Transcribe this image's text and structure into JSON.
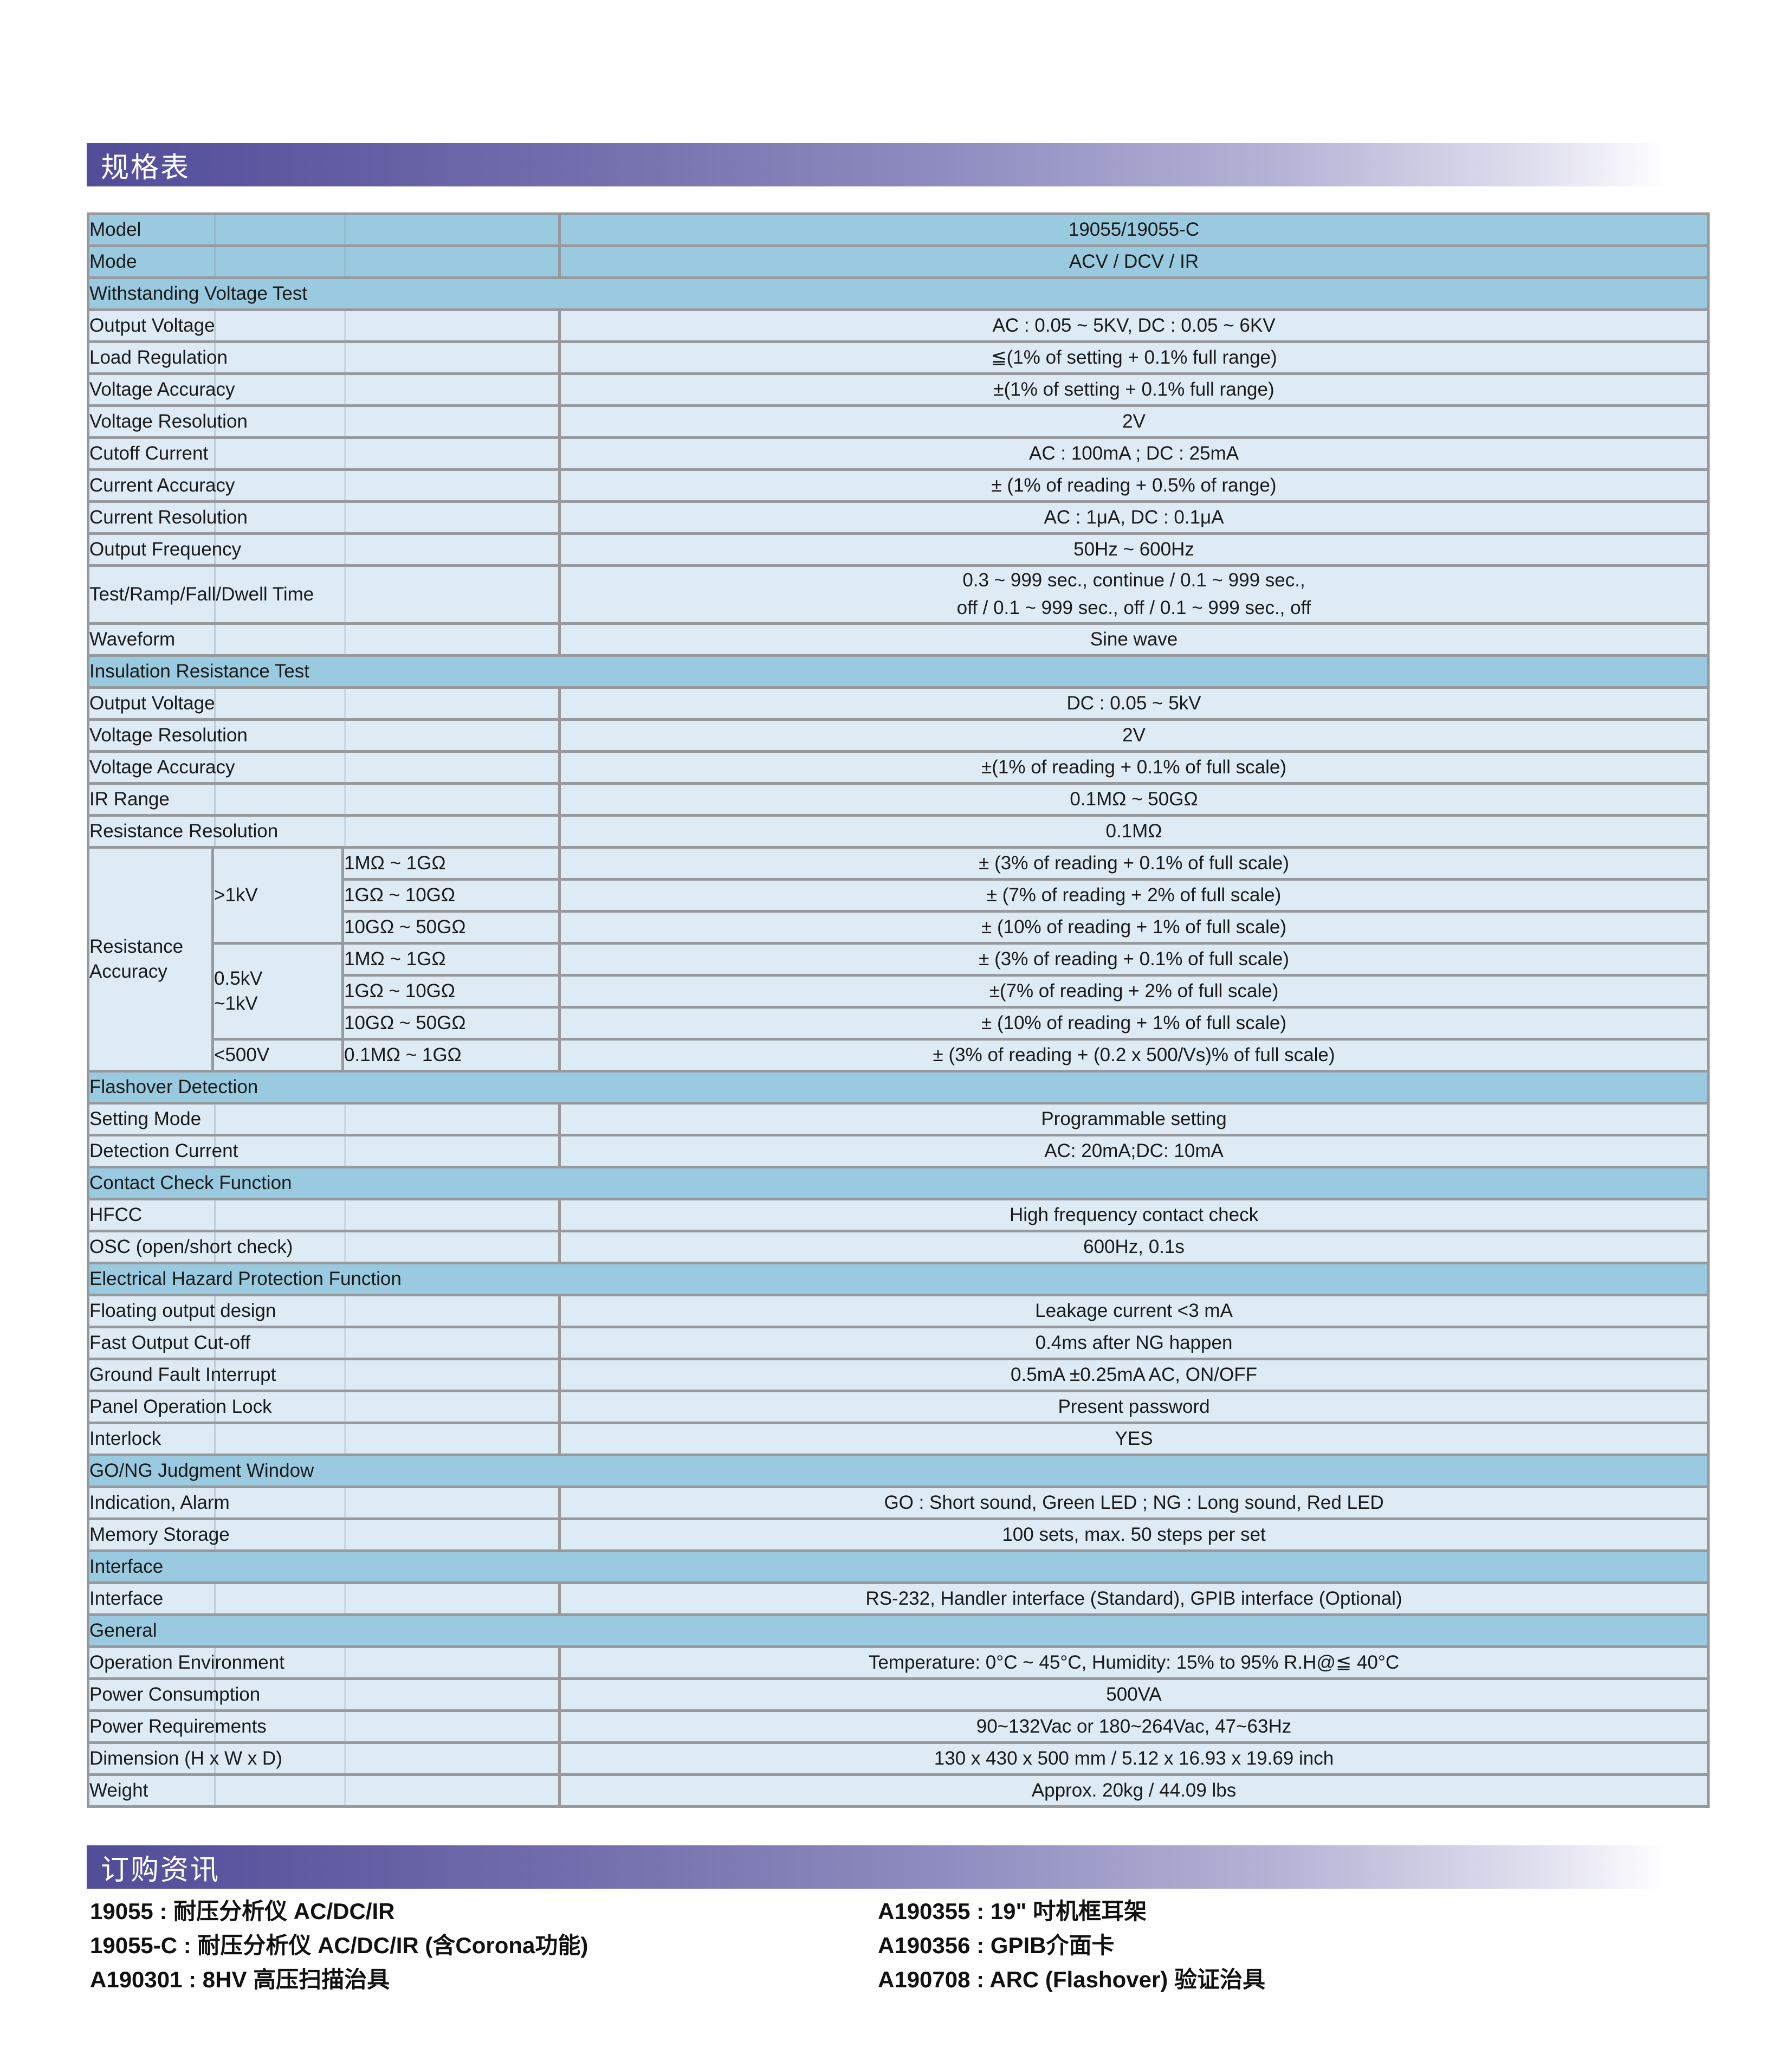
{
  "headers": {
    "spec": "规格表",
    "order": "订购资讯"
  },
  "colors": {
    "header_bar_purple": "#524D99",
    "section_row_blue": "#9ACAE0",
    "data_row_blue": "#DEEBF5",
    "table_border_gray": "#969A9E",
    "text": "#1A1A1A"
  },
  "table": {
    "rows": [
      {
        "t": "hkv",
        "label": "Model",
        "value": "19055/19055-C"
      },
      {
        "t": "hkv",
        "label": "Mode",
        "value": "ACV / DCV / IR"
      },
      {
        "t": "sec",
        "label": "Withstanding Voltage Test"
      },
      {
        "t": "kv",
        "label": "Output Voltage",
        "value": "AC : 0.05 ~ 5KV, DC : 0.05 ~ 6KV"
      },
      {
        "t": "kv",
        "label": "Load Regulation",
        "value": "≦(1% of setting + 0.1% full range)"
      },
      {
        "t": "kv",
        "label": "Voltage Accuracy",
        "value": "±(1% of setting + 0.1% full range)"
      },
      {
        "t": "kv",
        "label": "Voltage Resolution",
        "value": "2V"
      },
      {
        "t": "kv",
        "label": "Cutoff Current",
        "value": "AC : 100mA ; DC : 25mA"
      },
      {
        "t": "kv",
        "label": "Current Accuracy",
        "value": "± (1% of reading + 0.5% of range)"
      },
      {
        "t": "kv",
        "label": "Current Resolution",
        "value": "AC : 1μA, DC : 0.1μA"
      },
      {
        "t": "kv",
        "label": "Output Frequency",
        "value": "50Hz ~ 600Hz"
      },
      {
        "t": "kv",
        "tall": true,
        "label": "Test/Ramp/Fall/Dwell Time",
        "value": "0.3 ~ 999 sec., continue / 0.1 ~ 999 sec.,\noff / 0.1 ~ 999 sec., off / 0.1 ~ 999 sec., off"
      },
      {
        "t": "kv",
        "label": "Waveform",
        "value": "Sine wave"
      },
      {
        "t": "sec",
        "label": "Insulation Resistance Test"
      },
      {
        "t": "kv",
        "label": "Output Voltage",
        "value": "DC : 0.05 ~ 5kV"
      },
      {
        "t": "kv",
        "label": "Voltage Resolution",
        "value": "2V"
      },
      {
        "t": "kv",
        "label": "Voltage Accuracy",
        "value": "±(1% of reading + 0.1% of full scale)"
      },
      {
        "t": "kv",
        "label": "IR Range",
        "value": "0.1MΩ ~ 50GΩ"
      },
      {
        "t": "kv",
        "label": "Resistance Resolution",
        "value": "0.1MΩ"
      },
      {
        "t": "acc"
      },
      {
        "t": "sec",
        "label": "Flashover Detection"
      },
      {
        "t": "kv",
        "label": "Setting Mode",
        "value": "Programmable setting"
      },
      {
        "t": "kv",
        "label": "Detection Current",
        "value": "AC: 20mA;DC: 10mA"
      },
      {
        "t": "sec",
        "label": "Contact Check Function"
      },
      {
        "t": "kv",
        "label": "HFCC",
        "value": "High frequency contact check"
      },
      {
        "t": "kv",
        "label": "OSC (open/short check)",
        "value": "600Hz, 0.1s"
      },
      {
        "t": "sec",
        "label": "Electrical Hazard Protection Function"
      },
      {
        "t": "kv",
        "label": "Floating output design",
        "value": "Leakage current <3 mA"
      },
      {
        "t": "kv",
        "label": "Fast Output Cut-off",
        "value": "0.4ms after NG happen"
      },
      {
        "t": "kv",
        "label": "Ground Fault Interrupt",
        "value": "0.5mA ±0.25mA AC, ON/OFF"
      },
      {
        "t": "kv",
        "label": "Panel Operation Lock",
        "value": "Present password"
      },
      {
        "t": "kv",
        "label": "Interlock",
        "value": "YES"
      },
      {
        "t": "sec",
        "label": "GO/NG Judgment Window"
      },
      {
        "t": "kv",
        "label": "Indication, Alarm",
        "value": "GO : Short sound, Green LED ; NG : Long sound, Red LED"
      },
      {
        "t": "kv",
        "label": "Memory Storage",
        "value": "100 sets, max. 50 steps per set"
      },
      {
        "t": "sec",
        "label": "Interface"
      },
      {
        "t": "kv",
        "label": "Interface",
        "value": "RS-232, Handler interface (Standard), GPIB interface (Optional)"
      },
      {
        "t": "sec",
        "label": "General"
      },
      {
        "t": "kv",
        "label": "Operation Environment",
        "value": "Temperature: 0°C ~ 45°C, Humidity: 15% to 95% R.H@≦ 40°C"
      },
      {
        "t": "kv",
        "label": "Power Consumption",
        "value": "500VA"
      },
      {
        "t": "kv",
        "label": "Power Requirements",
        "value": "90~132Vac or 180~264Vac, 47~63Hz"
      },
      {
        "t": "kv",
        "label": "Dimension (H x W x D)",
        "value": "130 x 430 x 500 mm / 5.12 x 16.93 x 19.69 inch"
      },
      {
        "t": "kv",
        "label": "Weight",
        "value": "Approx. 20kg / 44.09 lbs"
      }
    ],
    "accuracy": {
      "label": "Resistance\nAccuracy",
      "groups": [
        {
          "voltage": ">1kV",
          "rows": [
            {
              "range": "1MΩ ~ 1GΩ",
              "value": "± (3% of reading + 0.1% of full scale)"
            },
            {
              "range": "1GΩ ~ 10GΩ",
              "value": "± (7% of reading + 2% of full scale)"
            },
            {
              "range": "10GΩ ~ 50GΩ",
              "value": "± (10% of reading + 1% of full scale)"
            }
          ]
        },
        {
          "voltage": "0.5kV\n~1kV",
          "rows": [
            {
              "range": "1MΩ ~ 1GΩ",
              "value": "± (3% of reading + 0.1% of full scale)"
            },
            {
              "range": "1GΩ ~ 10GΩ",
              "value": "±(7% of reading + 2% of full scale)"
            },
            {
              "range": "10GΩ ~ 50GΩ",
              "value": "± (10% of reading + 1% of full scale)"
            }
          ]
        },
        {
          "voltage": "<500V",
          "rows": [
            {
              "range": "0.1MΩ ~ 1GΩ",
              "value": "± (3% of reading + (0.2 x 500/Vs)% of full scale)"
            }
          ]
        }
      ]
    }
  },
  "ordering": {
    "left": [
      "19055 : 耐压分析仪 AC/DC/IR",
      "19055-C : 耐压分析仪 AC/DC/IR (含Corona功能)",
      "A190301 : 8HV 高压扫描治具"
    ],
    "right": [
      "A190355 : 19\" 吋机框耳架",
      "A190356 : GPIB介面卡",
      "A190708 : ARC (Flashover) 验证治具"
    ]
  }
}
